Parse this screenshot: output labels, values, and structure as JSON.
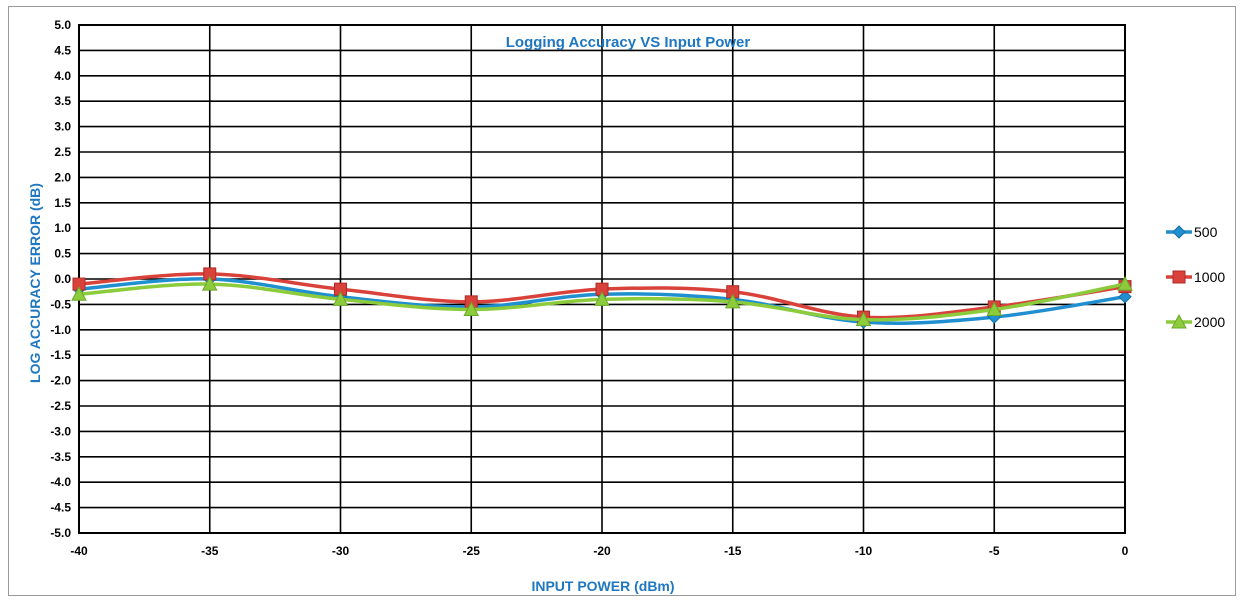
{
  "chart_data": {
    "type": "line",
    "title": "Logging Accuracy VS Input Power",
    "xlabel": "INPUT POWER (dBm)",
    "ylabel": "LOG ACCURACY ERROR (dB)",
    "x": [
      -40,
      -35,
      -30,
      -25,
      -20,
      -15,
      -10,
      -5,
      0
    ],
    "x_tick_labels": [
      "-40",
      "-35",
      "-30",
      "-25",
      "-20",
      "-15",
      "-10",
      "-5",
      "0"
    ],
    "y_tick_labels": [
      "5.0",
      "4.5",
      "4.0",
      "3.5",
      "3.0",
      "2.5",
      "2.0",
      "1.5",
      "1.0",
      "0.5",
      "0.0",
      "-0.5",
      "-1.0",
      "-1.5",
      "-2.0",
      "-2.5",
      "-3.0",
      "-3.5",
      "-4.0",
      "-4.5",
      "-5.0"
    ],
    "xlim": [
      -40,
      0
    ],
    "ylim": [
      -5,
      5
    ],
    "grid": true,
    "legend_position": "right",
    "series": [
      {
        "name": "500",
        "color": "#1f8fd0",
        "marker": "diamond-icon",
        "values": [
          -0.2,
          0.0,
          -0.35,
          -0.55,
          -0.3,
          -0.4,
          -0.85,
          -0.75,
          -0.35
        ]
      },
      {
        "name": "1000",
        "color": "#d9423a",
        "marker": "square-icon",
        "values": [
          -0.1,
          0.1,
          -0.2,
          -0.45,
          -0.2,
          -0.25,
          -0.75,
          -0.55,
          -0.15
        ]
      },
      {
        "name": "2000",
        "color": "#8ccc3c",
        "marker": "triangle-icon",
        "values": [
          -0.3,
          -0.1,
          -0.4,
          -0.6,
          -0.4,
          -0.45,
          -0.8,
          -0.6,
          -0.1
        ]
      }
    ]
  }
}
